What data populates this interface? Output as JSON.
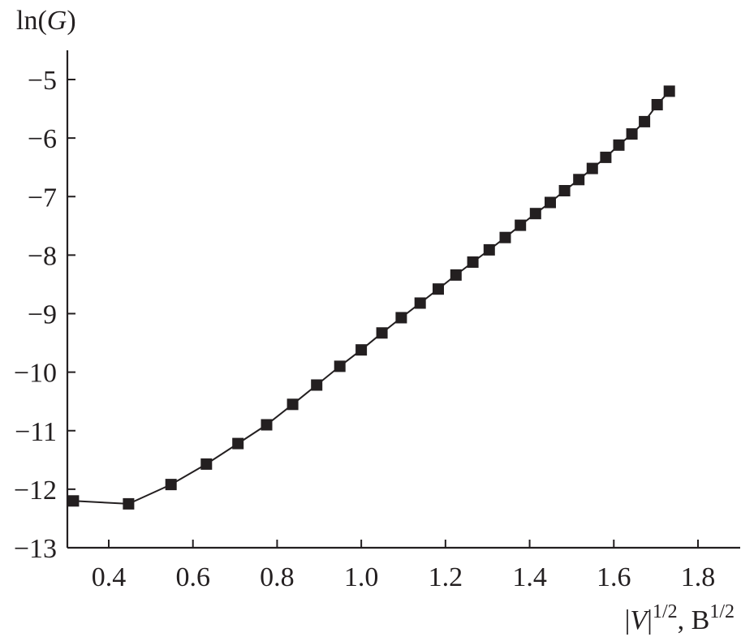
{
  "chart_data": {
    "type": "line",
    "title": "",
    "ylabel": {
      "prefix": "ln(",
      "var": "G",
      "suffix": ")"
    },
    "xlabel": {
      "bar_left": "|",
      "var": "V",
      "bar_right": "|",
      "exp1": "1/2",
      "sep": ", B",
      "exp2": "1/2"
    },
    "xlim": [
      0.3,
      1.9
    ],
    "ylim": [
      -13,
      -4.5
    ],
    "x_ticks": [
      0.4,
      0.6,
      0.8,
      1.0,
      1.2,
      1.4,
      1.6,
      1.8
    ],
    "x_tick_labels": [
      "0.4",
      "0.6",
      "0.8",
      "1.0",
      "1.2",
      "1.4",
      "1.6",
      "1.8"
    ],
    "y_ticks": [
      -13,
      -12,
      -11,
      -10,
      -9,
      -8,
      -7,
      -6,
      -5
    ],
    "y_tick_labels": [
      "−13",
      "−12",
      "−11",
      "−10",
      "−9",
      "−8",
      "−7",
      "−6",
      "−5"
    ],
    "grid": false,
    "marker": "square",
    "color": "#231f20",
    "series": [
      {
        "x": [
          0.316,
          0.447,
          0.548,
          0.632,
          0.707,
          0.775,
          0.837,
          0.894,
          0.949,
          1.0,
          1.049,
          1.095,
          1.14,
          1.183,
          1.225,
          1.265,
          1.304,
          1.342,
          1.378,
          1.414,
          1.449,
          1.483,
          1.517,
          1.549,
          1.581,
          1.612,
          1.643,
          1.673,
          1.703,
          1.732
        ],
        "y": [
          -12.2,
          -12.25,
          -11.92,
          -11.57,
          -11.22,
          -10.9,
          -10.55,
          -10.22,
          -9.9,
          -9.62,
          -9.33,
          -9.07,
          -8.82,
          -8.58,
          -8.34,
          -8.12,
          -7.91,
          -7.7,
          -7.49,
          -7.29,
          -7.1,
          -6.9,
          -6.71,
          -6.52,
          -6.33,
          -6.12,
          -5.93,
          -5.72,
          -5.43,
          -5.2
        ]
      }
    ]
  }
}
